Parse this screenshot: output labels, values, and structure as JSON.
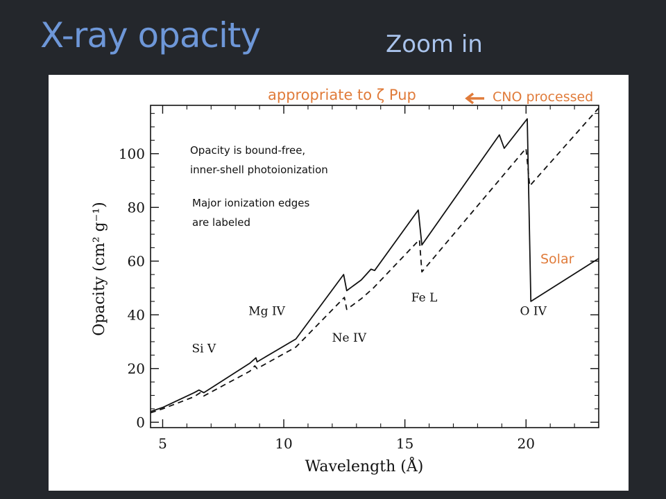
{
  "slide": {
    "title": "X-ray opacity",
    "subtitle": "Zoom in"
  },
  "colors": {
    "background": "#24272c",
    "title": "#6e97d8",
    "subtitle": "#a9c3ec",
    "annotation_orange": "#e07b3a",
    "ink": "#111111"
  },
  "annotations": {
    "appropriate": "appropriate to ζ Pup",
    "cno": "CNO processed",
    "solar": "Solar",
    "note1_line1": "Opacity is bound-free,",
    "note1_line2": "inner-shell photoionization",
    "note2_line1": "Major ionization edges",
    "note2_line2": "are labeled"
  },
  "chart_data": {
    "type": "line",
    "xlabel": "Wavelength (Å)",
    "ylabel": "Opacity (cm² g⁻¹)",
    "xlim": [
      4.5,
      23
    ],
    "ylim": [
      -2,
      118
    ],
    "xticks": [
      5,
      10,
      15,
      20
    ],
    "yticks": [
      0,
      20,
      40,
      60,
      80,
      100
    ],
    "edge_labels": [
      {
        "text": "Si V",
        "x": 6.7,
        "y": 26
      },
      {
        "text": "Mg IV",
        "x": 9.3,
        "y": 40
      },
      {
        "text": "Ne IV",
        "x": 12.7,
        "y": 30
      },
      {
        "text": "Fe L",
        "x": 15.8,
        "y": 45
      },
      {
        "text": "O IV",
        "x": 20.3,
        "y": 40
      }
    ],
    "series": [
      {
        "style": "solid",
        "points": [
          [
            4.5,
            4
          ],
          [
            5.0,
            5.5
          ],
          [
            6.3,
            11
          ],
          [
            6.5,
            12
          ],
          [
            6.7,
            11
          ],
          [
            8.6,
            22
          ],
          [
            8.85,
            24
          ],
          [
            8.9,
            22.5
          ],
          [
            10.5,
            31
          ],
          [
            12.47,
            55
          ],
          [
            12.6,
            49
          ],
          [
            12.9,
            51
          ],
          [
            13.2,
            53
          ],
          [
            13.6,
            57
          ],
          [
            13.75,
            56.5
          ],
          [
            15.55,
            79
          ],
          [
            15.7,
            66
          ],
          [
            18.9,
            107
          ],
          [
            19.1,
            102
          ],
          [
            20.05,
            113
          ],
          [
            20.2,
            45
          ],
          [
            23,
            61
          ]
        ]
      },
      {
        "style": "dashed",
        "points": [
          [
            4.5,
            3.5
          ],
          [
            5.0,
            5
          ],
          [
            6.3,
            9.5
          ],
          [
            6.55,
            11
          ],
          [
            6.7,
            9.8
          ],
          [
            8.6,
            19
          ],
          [
            8.8,
            21
          ],
          [
            8.9,
            20
          ],
          [
            10.5,
            28
          ],
          [
            12.5,
            46.5
          ],
          [
            12.6,
            42
          ],
          [
            13.2,
            46
          ],
          [
            13.7,
            50
          ],
          [
            15.6,
            68
          ],
          [
            15.7,
            56
          ],
          [
            20.0,
            102
          ],
          [
            20.15,
            88
          ],
          [
            23,
            117
          ]
        ]
      }
    ]
  }
}
